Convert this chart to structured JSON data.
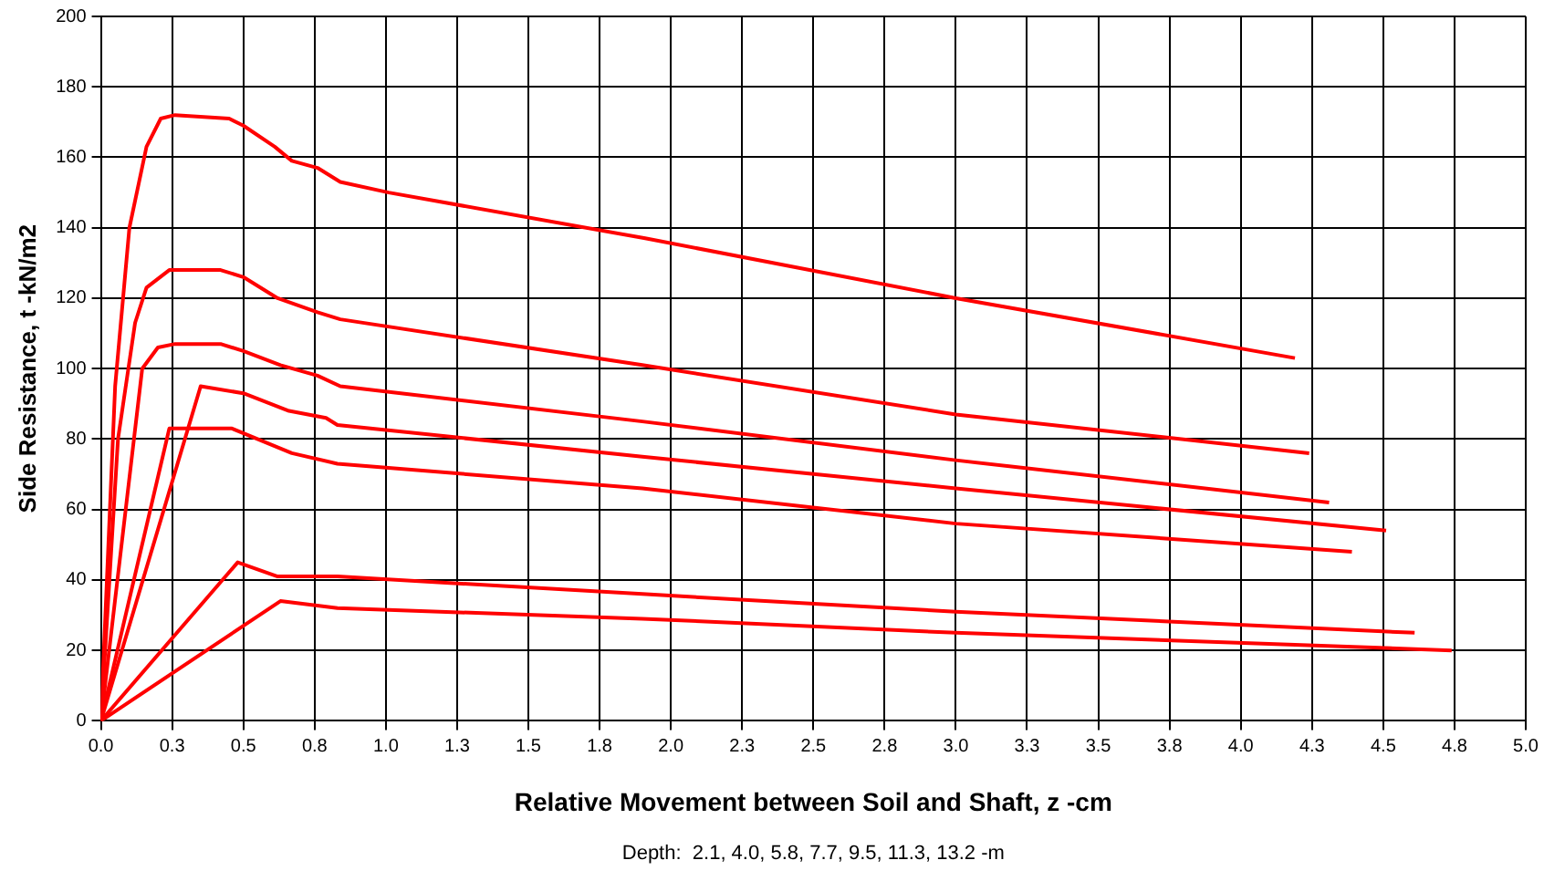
{
  "chart_data": {
    "type": "line",
    "xlabel": "Relative Movement between Soil and Shaft, z -cm",
    "ylabel": "Side Resistance, t -kN/m2",
    "annotations": [
      "Depth:  2.1, 4.0, 5.8, 7.7, 9.5, 11.3, 13.2 -m"
    ],
    "xlim": [
      0,
      5
    ],
    "ylim": [
      0,
      200
    ],
    "xticks": [
      {
        "value": 0,
        "label": "0.0"
      },
      {
        "value": 0.25,
        "label": "0.3"
      },
      {
        "value": 0.5,
        "label": "0.5"
      },
      {
        "value": 0.75,
        "label": "0.8"
      },
      {
        "value": 1,
        "label": "1.0"
      },
      {
        "value": 1.25,
        "label": "1.3"
      },
      {
        "value": 1.5,
        "label": "1.5"
      },
      {
        "value": 1.75,
        "label": "1.8"
      },
      {
        "value": 2,
        "label": "2.0"
      },
      {
        "value": 2.25,
        "label": "2.3"
      },
      {
        "value": 2.5,
        "label": "2.5"
      },
      {
        "value": 2.75,
        "label": "2.8"
      },
      {
        "value": 3,
        "label": "3.0"
      },
      {
        "value": 3.25,
        "label": "3.3"
      },
      {
        "value": 3.5,
        "label": "3.5"
      },
      {
        "value": 3.75,
        "label": "3.8"
      },
      {
        "value": 4,
        "label": "4.0"
      },
      {
        "value": 4.25,
        "label": "4.3"
      },
      {
        "value": 4.5,
        "label": "4.5"
      },
      {
        "value": 4.75,
        "label": "4.8"
      },
      {
        "value": 5,
        "label": "5.0"
      }
    ],
    "yticks": [
      0,
      20,
      40,
      60,
      80,
      100,
      120,
      140,
      160,
      180,
      200
    ],
    "grid": true,
    "marker": "none",
    "line_style": "solid",
    "series": [
      {
        "color": "#ff0000",
        "x": [
          0,
          0.05,
          0.1,
          0.16,
          0.21,
          0.26,
          0.45,
          0.5,
          0.61,
          0.67,
          0.76,
          0.84,
          1.01,
          1.91,
          3.0,
          4.19
        ],
        "values": [
          0,
          95,
          140,
          163,
          171,
          172,
          171,
          169,
          163,
          159,
          157,
          153,
          150,
          137,
          120,
          103
        ]
      },
      {
        "color": "#ff0000",
        "x": [
          0,
          0.06,
          0.12,
          0.16,
          0.24,
          0.42,
          0.5,
          0.62,
          0.76,
          0.84,
          1.9,
          3.0,
          4.24
        ],
        "values": [
          0,
          80,
          113,
          123,
          128,
          128,
          126,
          120,
          116,
          114,
          101,
          87,
          76
        ]
      },
      {
        "color": "#ff0000",
        "x": [
          0,
          0.145,
          0.2,
          0.26,
          0.42,
          0.5,
          0.63,
          0.76,
          0.84,
          1.9,
          3.0,
          4.31
        ],
        "values": [
          0,
          100,
          106,
          107,
          107,
          105,
          101,
          98,
          95,
          85,
          74,
          62
        ]
      },
      {
        "color": "#ff0000",
        "x": [
          0,
          0.35,
          0.5,
          0.66,
          0.79,
          0.83,
          1.9,
          3.0,
          4.51
        ],
        "values": [
          0,
          95,
          93,
          88,
          86,
          84,
          75,
          66,
          54
        ]
      },
      {
        "color": "#ff0000",
        "x": [
          0,
          0.24,
          0.46,
          0.67,
          0.83,
          1.9,
          3.0,
          4.39
        ],
        "values": [
          0,
          83,
          83,
          76,
          73,
          66,
          56,
          48
        ]
      },
      {
        "color": "#ff0000",
        "x": [
          0,
          0.48,
          0.62,
          0.83,
          1.9,
          3.0,
          4.61
        ],
        "values": [
          0,
          45,
          41,
          41,
          36,
          31,
          25
        ]
      },
      {
        "color": "#ff0000",
        "x": [
          0,
          0.63,
          0.83,
          1.9,
          3.0,
          4.74
        ],
        "values": [
          0,
          34,
          32,
          29,
          25,
          20
        ]
      }
    ]
  }
}
